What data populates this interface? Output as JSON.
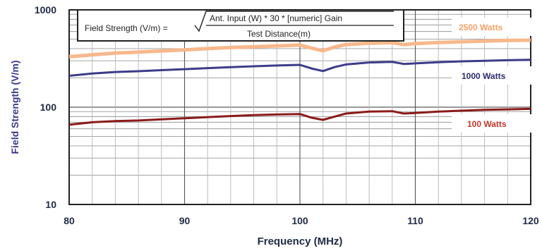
{
  "chart_data": {
    "type": "line",
    "xlabel": "Frequency (MHz)",
    "ylabel": "Field Strength (V/m)",
    "xlim": [
      80,
      120
    ],
    "ylim": [
      10,
      1000
    ],
    "yscale": "log",
    "x_ticks": [
      "80",
      "90",
      "100",
      "110",
      "120"
    ],
    "y_ticks": [
      "10",
      "100",
      "1000"
    ],
    "grid": true,
    "formula": {
      "lhs": "Field Strength (V/m) =",
      "numerator": "Ant. Input (W) * 30 * [numeric] Gain",
      "denominator": "Test Distance(m)"
    },
    "series": [
      {
        "name": "2500 Watts",
        "color": "#f7b98c",
        "x": [
          80,
          82,
          84,
          86,
          88,
          90,
          92,
          94,
          96,
          98,
          100,
          101,
          102,
          103,
          104,
          106,
          108,
          109,
          110,
          112,
          114,
          116,
          118,
          120
        ],
        "y": [
          330,
          345,
          360,
          368,
          378,
          388,
          400,
          410,
          418,
          426,
          435,
          405,
          380,
          415,
          440,
          455,
          460,
          440,
          450,
          462,
          470,
          478,
          485,
          488
        ]
      },
      {
        "name": "1000 Watts",
        "color": "#3c3c8a",
        "x": [
          80,
          82,
          84,
          86,
          88,
          90,
          92,
          94,
          96,
          98,
          100,
          101,
          102,
          103,
          104,
          106,
          108,
          109,
          110,
          112,
          114,
          116,
          118,
          120
        ],
        "y": [
          210,
          222,
          230,
          234,
          240,
          246,
          252,
          258,
          263,
          268,
          272,
          250,
          235,
          258,
          275,
          288,
          292,
          278,
          282,
          290,
          296,
          300,
          304,
          307
        ]
      },
      {
        "name": "100 Watts",
        "color": "#8b1a1a",
        "x": [
          80,
          82,
          84,
          86,
          88,
          90,
          92,
          94,
          96,
          98,
          100,
          101,
          102,
          103,
          104,
          106,
          108,
          109,
          110,
          112,
          114,
          116,
          118,
          120
        ],
        "y": [
          66,
          70,
          72,
          73,
          75,
          77,
          79,
          81,
          83,
          84,
          85,
          78,
          74,
          80,
          86,
          90,
          91,
          86,
          87,
          90,
          92,
          94,
          95,
          96
        ]
      }
    ]
  }
}
